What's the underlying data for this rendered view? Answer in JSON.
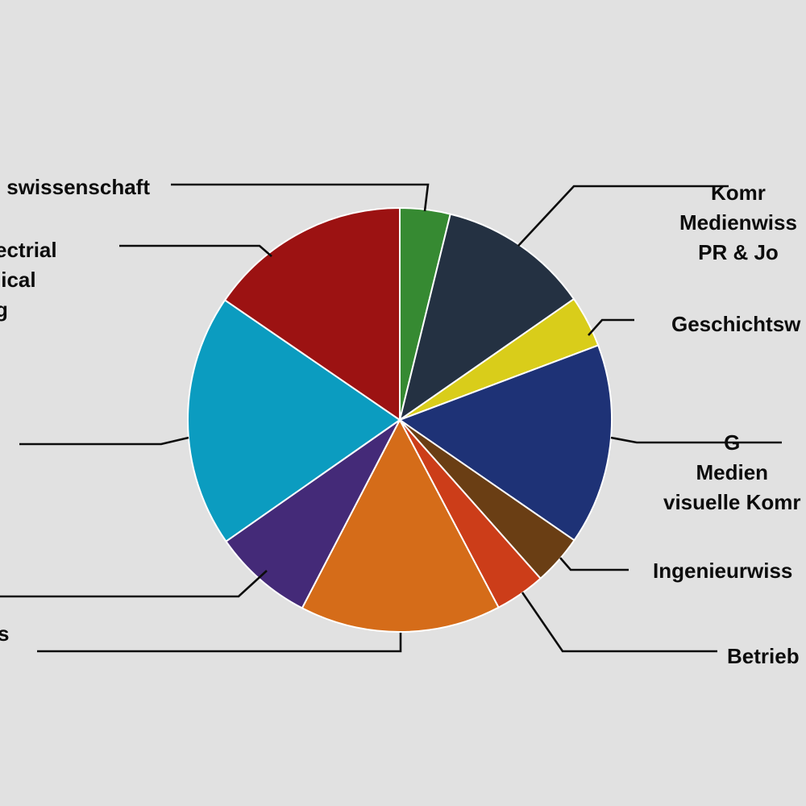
{
  "chart_data": {
    "type": "pie",
    "start_angle_deg": 0,
    "direction": "clockwise",
    "slices": [
      {
        "label": "swissenschaft",
        "value": 3.9,
        "color": "#368a32"
      },
      {
        "label": "Komr\nMedienwiss\nPR & Jo",
        "value": 11.7,
        "color": "#243142"
      },
      {
        "label": "Geschichtsw",
        "value": 4.0,
        "color": "#d9cd1a"
      },
      {
        "label": "G\nMedien\nvisuelle Komr",
        "value": 15.6,
        "color": "#1e3276"
      },
      {
        "label": "Ingenieurwiss",
        "value": 3.9,
        "color": "#6a3e14"
      },
      {
        "label": "Betrieb",
        "value": 3.9,
        "color": "#cc3d19"
      },
      {
        "label": "s",
        "value": 15.6,
        "color": "#d56c19"
      },
      {
        "label": "",
        "value": 7.8,
        "color": "#442a78"
      },
      {
        "label": "",
        "value": 19.6,
        "color": "#0b9cc0"
      },
      {
        "label": "ectrial\nlical\ng",
        "value": 15.7,
        "color": "#9c1212"
      }
    ]
  }
}
